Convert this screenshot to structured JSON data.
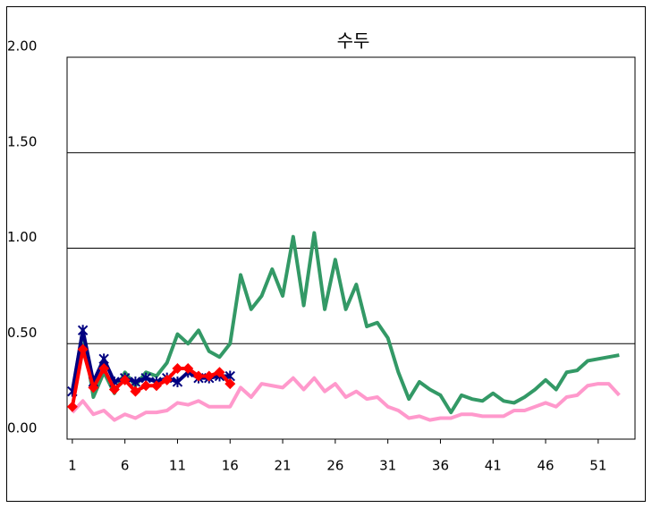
{
  "chart_data": {
    "type": "line",
    "title": "수두",
    "x": [
      1,
      2,
      3,
      4,
      5,
      6,
      7,
      8,
      9,
      10,
      11,
      12,
      13,
      14,
      15,
      16,
      17,
      18,
      19,
      20,
      21,
      22,
      23,
      24,
      25,
      26,
      27,
      28,
      29,
      30,
      31,
      32,
      33,
      34,
      35,
      36,
      37,
      38,
      39,
      40,
      41,
      42,
      43,
      44,
      45,
      46,
      47,
      48,
      49,
      50,
      51,
      52,
      53
    ],
    "xlim": [
      0.5,
      54.5
    ],
    "xticks": [
      1,
      6,
      11,
      16,
      21,
      26,
      31,
      36,
      41,
      46,
      51
    ],
    "ylim": [
      0,
      2
    ],
    "yticks": [
      {
        "value": 0,
        "label": "0.00"
      },
      {
        "value": 0.5,
        "label": "0.50"
      },
      {
        "value": 1,
        "label": "1.00"
      },
      {
        "value": 1.5,
        "label": "1.50"
      },
      {
        "value": 2,
        "label": "2.00"
      }
    ],
    "grid": true,
    "series": [
      {
        "color": "#ff99cc",
        "marker": "none",
        "values": [
          0.14,
          0.2,
          0.13,
          0.15,
          0.1,
          0.13,
          0.11,
          0.14,
          0.14,
          0.15,
          0.19,
          0.18,
          0.2,
          0.17,
          0.17,
          0.17,
          0.27,
          0.22,
          0.29,
          0.28,
          0.27,
          0.32,
          0.26,
          0.32,
          0.25,
          0.29,
          0.22,
          0.25,
          0.21,
          0.22,
          0.17,
          0.15,
          0.11,
          0.12,
          0.1,
          0.11,
          0.11,
          0.13,
          0.13,
          0.12,
          0.12,
          0.12,
          0.15,
          0.15,
          0.17,
          0.19,
          0.17,
          0.22,
          0.23,
          0.28,
          0.29,
          0.29,
          0.23
        ]
      },
      {
        "color": "#339966",
        "marker": "none",
        "values": [
          0.24,
          0.57,
          0.22,
          0.35,
          0.24,
          0.35,
          0.28,
          0.35,
          0.33,
          0.4,
          0.55,
          0.5,
          0.57,
          0.46,
          0.43,
          0.5,
          0.86,
          0.68,
          0.75,
          0.89,
          0.75,
          1.06,
          0.7,
          1.08,
          0.68,
          0.94,
          0.68,
          0.81,
          0.59,
          0.61,
          0.53,
          0.35,
          0.21,
          0.3,
          0.26,
          0.23,
          0.14,
          0.23,
          0.21,
          0.2,
          0.24,
          0.2,
          0.19,
          0.22,
          0.26,
          0.31,
          0.26,
          0.35,
          0.36,
          0.41,
          0.42,
          0.43,
          0.44
        ]
      },
      {
        "color": "#000080",
        "marker": "asterisk",
        "values": [
          0.25,
          0.57,
          0.3,
          0.42,
          0.3,
          0.32,
          0.3,
          0.32,
          0.3,
          0.32,
          0.3,
          0.35,
          0.32,
          0.32,
          0.33,
          0.33,
          null,
          null,
          null,
          null,
          null,
          null,
          null,
          null,
          null,
          null,
          null,
          null,
          null,
          null,
          null,
          null,
          null,
          null,
          null,
          null,
          null,
          null,
          null,
          null,
          null,
          null,
          null,
          null,
          null,
          null,
          null,
          null,
          null,
          null,
          null,
          null,
          null
        ]
      },
      {
        "color": "#ff0000",
        "marker": "diamond",
        "values": [
          0.17,
          0.47,
          0.27,
          0.37,
          0.26,
          0.31,
          0.25,
          0.28,
          0.28,
          0.31,
          0.37,
          0.37,
          0.33,
          0.33,
          0.35,
          0.29,
          null,
          null,
          null,
          null,
          null,
          null,
          null,
          null,
          null,
          null,
          null,
          null,
          null,
          null,
          null,
          null,
          null,
          null,
          null,
          null,
          null,
          null,
          null,
          null,
          null,
          null,
          null,
          null,
          null,
          null,
          null,
          null,
          null,
          null,
          null,
          null,
          null
        ]
      }
    ]
  }
}
